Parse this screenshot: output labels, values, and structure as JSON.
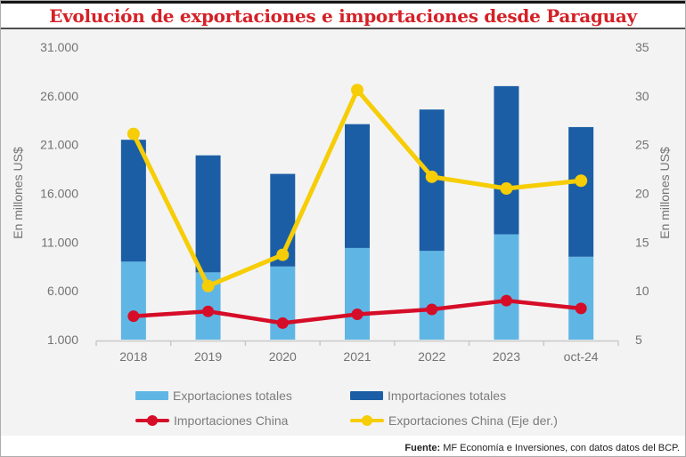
{
  "title": "Evolución de exportaciones e importaciones desde Paraguay",
  "colors": {
    "title": "#d42127",
    "panel_bg": "#f3f3f3",
    "axis_text": "#737373",
    "legend_text": "#7c7c7c",
    "axis_line": "#c9c9c9",
    "bar_exports": "#5fb6e4",
    "bar_imports": "#1b5ea6",
    "line_imports_china": "#d60d28",
    "line_exports_china": "#f6cd06"
  },
  "source": {
    "label": "Fuente:",
    "text": " MF Economía e Inversiones, con datos datos del BCP."
  },
  "chart_data": {
    "type": "combo",
    "subtype": "stacked-bar + lines",
    "categories": [
      "2018",
      "2019",
      "2020",
      "2021",
      "2022",
      "2023",
      "oct-24"
    ],
    "series": [
      {
        "name": "Exportaciones totales",
        "type": "bar-stack",
        "axis": "left",
        "color": "#5fb6e4",
        "values": [
          9000,
          7900,
          8500,
          10400,
          10100,
          11800,
          9500
        ]
      },
      {
        "name": "Importaciones totales",
        "type": "bar-stack",
        "axis": "left",
        "color": "#1b5ea6",
        "values": [
          12500,
          12000,
          9500,
          12700,
          14500,
          15200,
          13300
        ]
      },
      {
        "name": "Importaciones China",
        "type": "line",
        "axis": "left",
        "color": "#d60d28",
        "values": [
          3400,
          3900,
          2700,
          3600,
          4100,
          5000,
          4200
        ]
      },
      {
        "name": "Exportaciones China (Eje der.)",
        "type": "line",
        "axis": "right",
        "color": "#f6cd06",
        "values": [
          26.1,
          10.5,
          13.7,
          30.6,
          21.7,
          20.5,
          21.3
        ]
      }
    ],
    "left_axis": {
      "title": "En millones US$",
      "min": 1000,
      "max": 31000,
      "step": 5000,
      "tick_labels": [
        "1.000",
        "6.000",
        "11.000",
        "16.000",
        "21.000",
        "26.000",
        "31.000"
      ]
    },
    "right_axis": {
      "title": "En millones US$",
      "min": 5,
      "max": 35,
      "step": 5,
      "tick_labels": [
        "5",
        "10",
        "15",
        "20",
        "25",
        "30",
        "35"
      ]
    },
    "grid": false,
    "legend_position": "bottom"
  }
}
